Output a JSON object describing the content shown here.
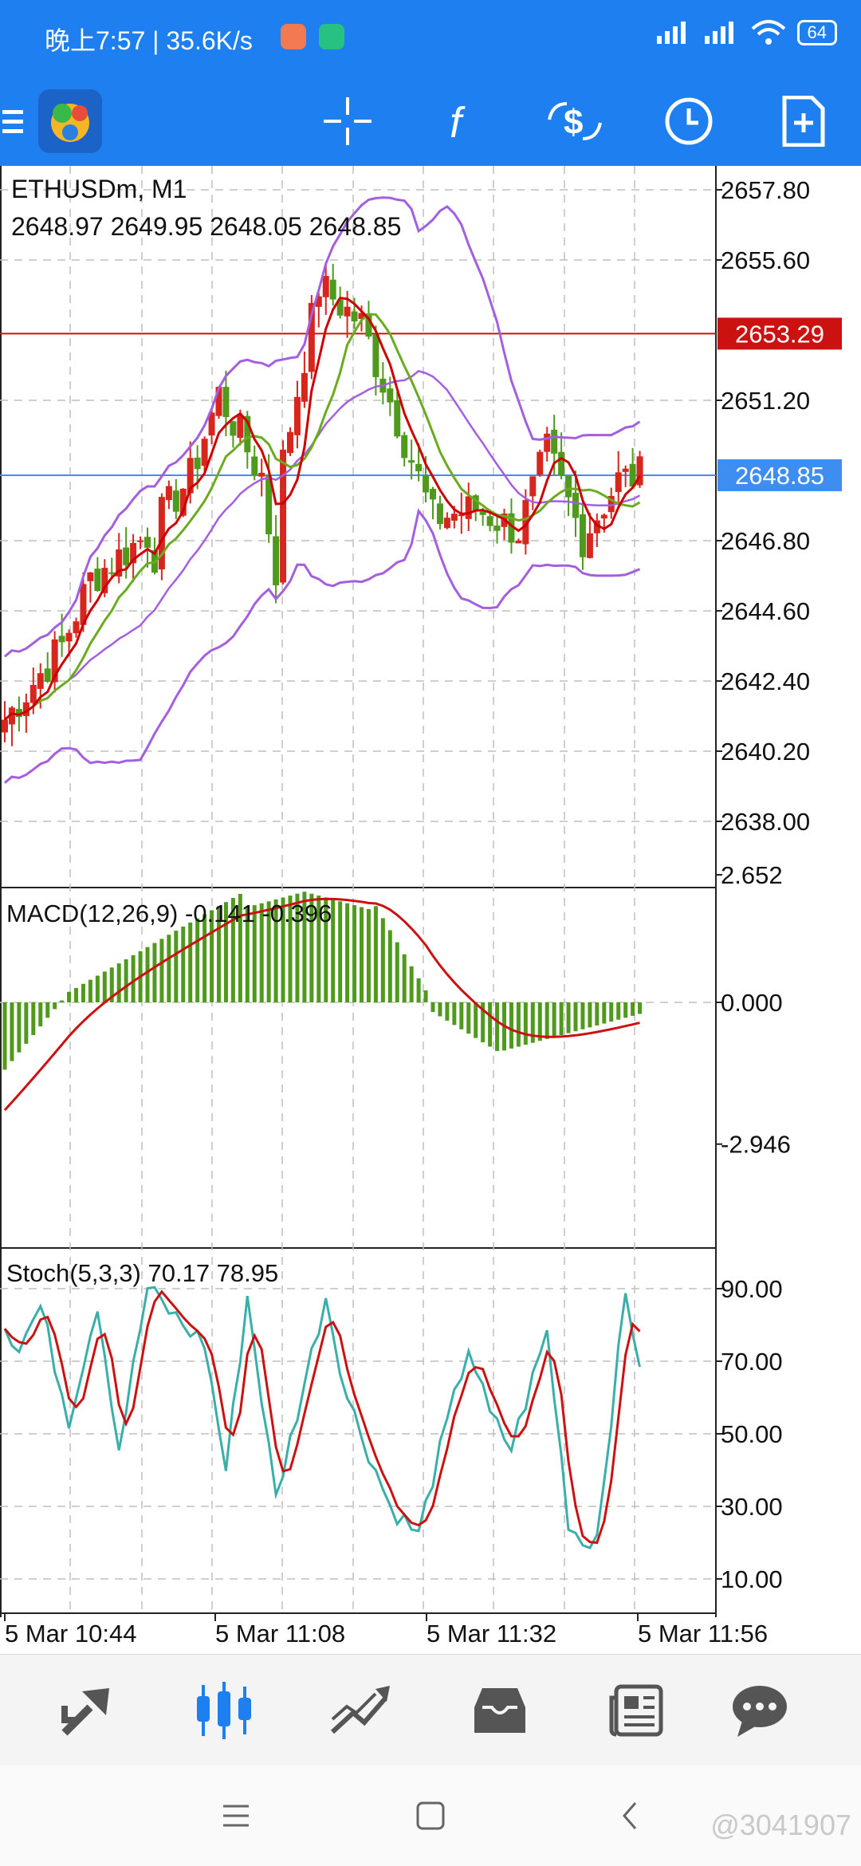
{
  "status_bar": {
    "time_speed": "晚上7:57 | 35.6K/s",
    "battery": "64"
  },
  "toolbar": {
    "icons": [
      "app-logo-icon",
      "crosshair-icon",
      "indicators-icon",
      "trade-dollar-icon",
      "clock-icon",
      "new-document-icon"
    ]
  },
  "chart": {
    "symbol": "ETHUSDm, M1",
    "ohlc": "2648.97 2649.95 2648.05 2648.85",
    "price_labels": [
      "2657.80",
      "2655.60",
      "2653.29",
      "2651.20",
      "2648.85",
      "2646.80",
      "2644.60",
      "2642.40",
      "2640.20",
      "2638.00"
    ],
    "red_line_price": "2653.29",
    "bid_price": "2648.85",
    "colors": {
      "bull": "#d7261e",
      "bear": "#4f9a1d",
      "ma_fast": "#cc0000",
      "ma_slow": "#6aab20",
      "bands": "#a45fe0",
      "macd_hist": "#4f9a1d",
      "macd_signal": "#cc1111",
      "stoch_main": "#3aafaa",
      "stoch_signal": "#cc1111",
      "red_level": "#cc1111",
      "bid_level": "#3d8ef0"
    }
  },
  "macd": {
    "title": "MACD(12,26,9) -0.141 -0.396",
    "labels": [
      "2.652",
      "0.000",
      "-2.946"
    ]
  },
  "stoch": {
    "title": "Stoch(5,3,3) 70.17 78.95",
    "labels": [
      "90.00",
      "70.00",
      "50.00",
      "30.00",
      "10.00"
    ]
  },
  "time_axis": [
    "5 Mar 10:44",
    "5 Mar 11:08",
    "5 Mar 11:32",
    "5 Mar 11:56"
  ],
  "bottom_nav": {
    "icons": [
      "quotes-icon",
      "chart-icon",
      "trade-icon",
      "history-icon",
      "news-icon",
      "chat-icon"
    ],
    "active": "chart-icon"
  },
  "system_nav": {
    "icons": [
      "menu-icon",
      "home-icon",
      "back-icon"
    ]
  },
  "watermark": "@3041907"
}
